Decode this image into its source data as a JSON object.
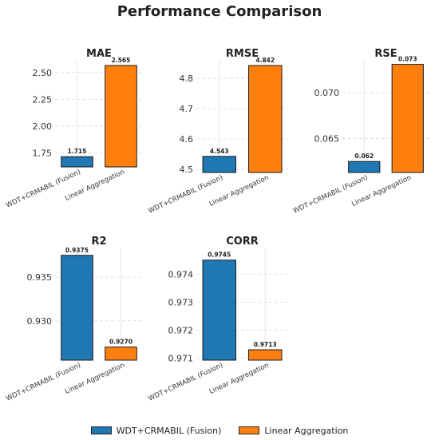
{
  "title": "Performance Comparison",
  "colors": {
    "fusion": "#1f77b4",
    "linear": "#ff7f0e"
  },
  "chart_data": [
    {
      "type": "bar",
      "title": "MAE",
      "categories": [
        "WDT+CRMABIL (Fusion)",
        "Linear Aggregation"
      ],
      "values": [
        1.715,
        2.565
      ],
      "value_labels": [
        "1.715",
        "2.565"
      ],
      "ylim": [
        1.62,
        2.61
      ],
      "yticks": [
        1.75,
        2.0,
        2.25,
        2.5
      ],
      "ytick_labels": [
        "1.75",
        "2.00",
        "2.25",
        "2.50"
      ],
      "grid": true
    },
    {
      "type": "bar",
      "title": "RMSE",
      "categories": [
        "WDT+CRMABIL (Fusion)",
        "Linear Aggregation"
      ],
      "values": [
        4.543,
        4.842
      ],
      "value_labels": [
        "4.543",
        "4.842"
      ],
      "ylim": [
        4.49,
        4.858
      ],
      "yticks": [
        4.5,
        4.6,
        4.7,
        4.8
      ],
      "ytick_labels": [
        "4.5",
        "4.6",
        "4.7",
        "4.8"
      ],
      "grid": true
    },
    {
      "type": "bar",
      "title": "RSE",
      "categories": [
        "WDT+CRMABIL (Fusion)",
        "Linear Aggregation"
      ],
      "values": [
        0.0625,
        0.0731
      ],
      "value_labels": [
        "0.062",
        "0.073"
      ],
      "ylim": [
        0.0613,
        0.0735
      ],
      "yticks": [
        0.065,
        0.07
      ],
      "ytick_labels": [
        "0.065",
        "0.070"
      ],
      "grid": true
    },
    {
      "type": "bar",
      "title": "R2",
      "categories": [
        "WDT+CRMABIL (Fusion)",
        "Linear Aggregation"
      ],
      "values": [
        0.9375,
        0.927
      ],
      "value_labels": [
        "0.9375",
        "0.9270"
      ],
      "ylim": [
        0.9255,
        0.9383
      ],
      "yticks": [
        0.93,
        0.935
      ],
      "ytick_labels": [
        "0.930",
        "0.935"
      ],
      "grid": true
    },
    {
      "type": "bar",
      "title": "CORR",
      "categories": [
        "WDT+CRMABIL (Fusion)",
        "Linear Aggregation"
      ],
      "values": [
        0.9745,
        0.9713
      ],
      "value_labels": [
        "0.9745",
        "0.9713"
      ],
      "ylim": [
        0.97093,
        0.97492
      ],
      "yticks": [
        0.971,
        0.972,
        0.973,
        0.974
      ],
      "ytick_labels": [
        "0.971",
        "0.972",
        "0.973",
        "0.974"
      ],
      "grid": true
    }
  ],
  "legend": {
    "items": [
      "WDT+CRMABIL (Fusion)",
      "Linear Aggregation"
    ],
    "position": "bottom-center"
  }
}
